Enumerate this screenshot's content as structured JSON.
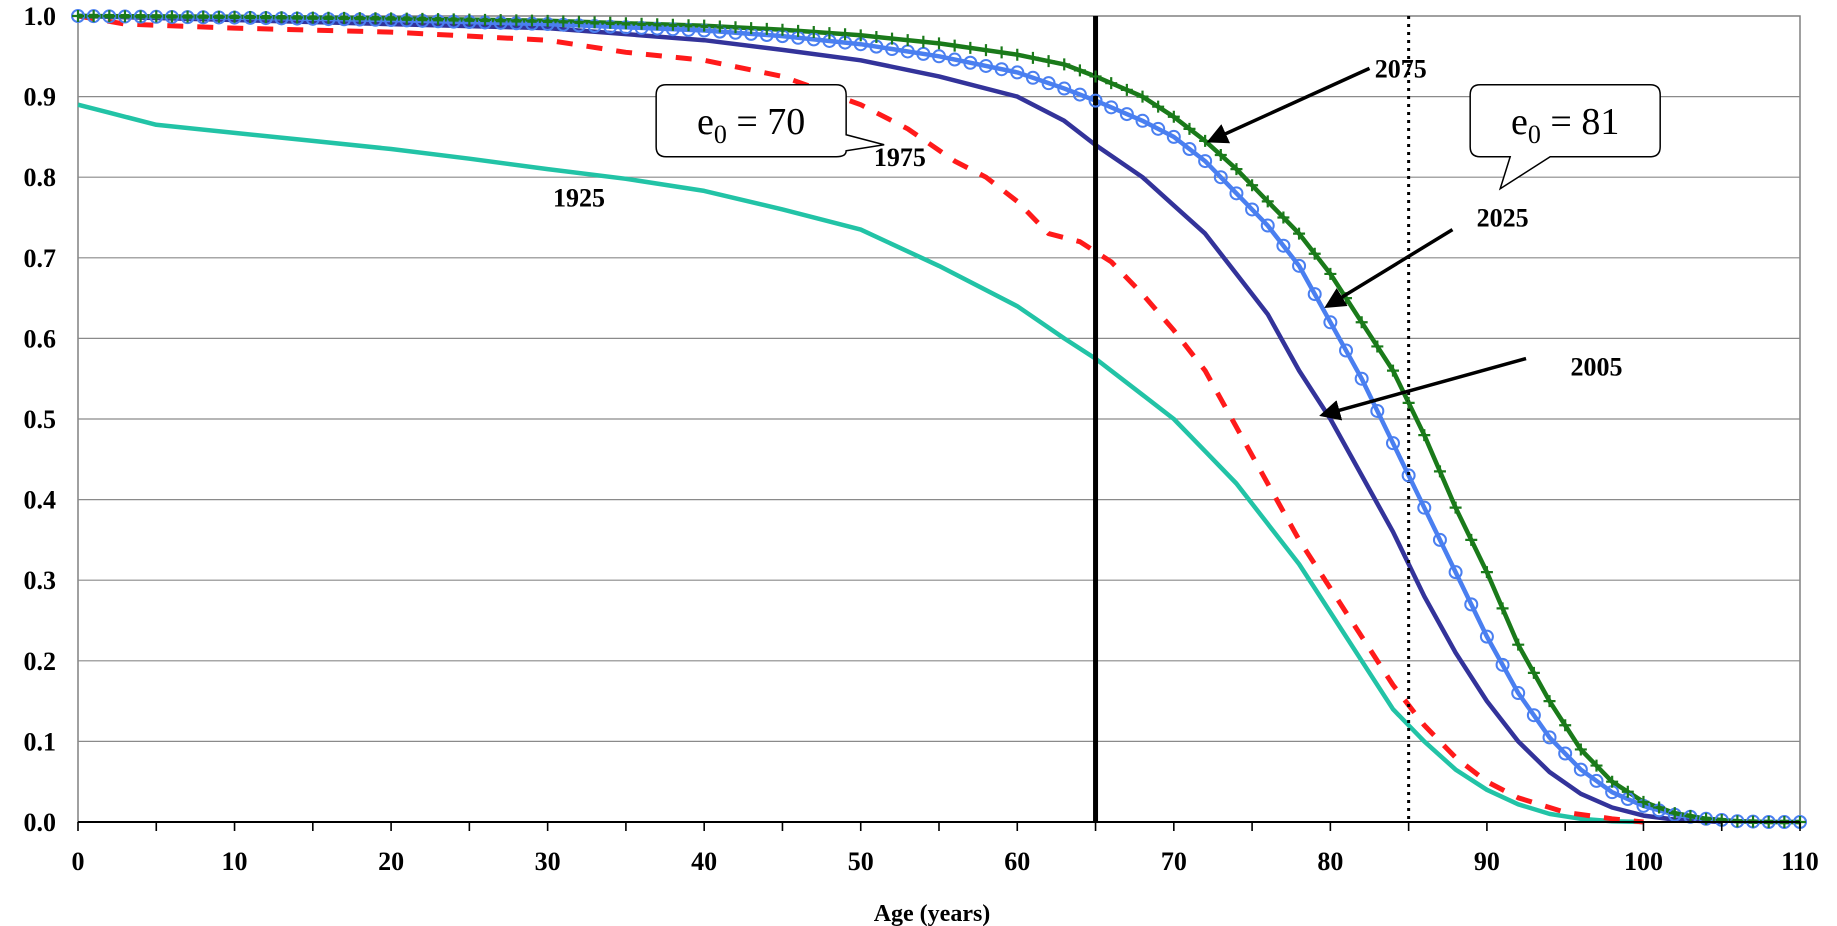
{
  "chart_data": {
    "type": "line",
    "title": "",
    "xlabel": "Age (years)",
    "ylabel": "",
    "xlim": [
      0,
      110
    ],
    "ylim": [
      0,
      1.0
    ],
    "xticks": [
      "0",
      "10",
      "20",
      "30",
      "40",
      "50",
      "60",
      "70",
      "80",
      "90",
      "100",
      "110"
    ],
    "yticks": [
      "0.0",
      "0.1",
      "0.2",
      "0.3",
      "0.4",
      "0.5",
      "0.6",
      "0.7",
      "0.8",
      "0.9",
      "1.0"
    ],
    "grid": "horizontal",
    "legend": "none (direct labels)",
    "series": [
      {
        "name": "1925",
        "color": "#22c3a6",
        "style": "solid",
        "points": [
          [
            0,
            0.89
          ],
          [
            2,
            0.88
          ],
          [
            5,
            0.865
          ],
          [
            10,
            0.855
          ],
          [
            15,
            0.845
          ],
          [
            20,
            0.835
          ],
          [
            25,
            0.823
          ],
          [
            30,
            0.81
          ],
          [
            35,
            0.798
          ],
          [
            40,
            0.783
          ],
          [
            45,
            0.76
          ],
          [
            50,
            0.735
          ],
          [
            55,
            0.69
          ],
          [
            60,
            0.64
          ],
          [
            63,
            0.6
          ],
          [
            65,
            0.575
          ],
          [
            68,
            0.53
          ],
          [
            70,
            0.5
          ],
          [
            72,
            0.46
          ],
          [
            74,
            0.42
          ],
          [
            76,
            0.37
          ],
          [
            78,
            0.32
          ],
          [
            80,
            0.26
          ],
          [
            82,
            0.2
          ],
          [
            84,
            0.14
          ],
          [
            86,
            0.1
          ],
          [
            88,
            0.065
          ],
          [
            90,
            0.04
          ],
          [
            92,
            0.022
          ],
          [
            94,
            0.01
          ],
          [
            96,
            0.004
          ],
          [
            98,
            0.001
          ],
          [
            100,
            0
          ]
        ]
      },
      {
        "name": "1975",
        "color": "#ff1a1a",
        "style": "dashed",
        "points": [
          [
            0,
            1.0
          ],
          [
            3,
            0.99
          ],
          [
            10,
            0.985
          ],
          [
            20,
            0.98
          ],
          [
            30,
            0.97
          ],
          [
            35,
            0.955
          ],
          [
            40,
            0.945
          ],
          [
            45,
            0.925
          ],
          [
            50,
            0.89
          ],
          [
            53,
            0.86
          ],
          [
            56,
            0.82
          ],
          [
            58,
            0.8
          ],
          [
            60,
            0.77
          ],
          [
            62,
            0.73
          ],
          [
            64,
            0.72
          ],
          [
            66,
            0.695
          ],
          [
            68,
            0.655
          ],
          [
            70,
            0.61
          ],
          [
            72,
            0.56
          ],
          [
            74,
            0.49
          ],
          [
            76,
            0.42
          ],
          [
            78,
            0.35
          ],
          [
            80,
            0.29
          ],
          [
            82,
            0.23
          ],
          [
            84,
            0.17
          ],
          [
            86,
            0.12
          ],
          [
            88,
            0.08
          ],
          [
            90,
            0.05
          ],
          [
            92,
            0.03
          ],
          [
            95,
            0.012
          ],
          [
            98,
            0.004
          ],
          [
            100,
            0
          ]
        ]
      },
      {
        "name": "2005",
        "color": "#33339a",
        "style": "solid",
        "points": [
          [
            0,
            1.0
          ],
          [
            10,
            0.995
          ],
          [
            20,
            0.99
          ],
          [
            30,
            0.985
          ],
          [
            40,
            0.97
          ],
          [
            45,
            0.958
          ],
          [
            50,
            0.945
          ],
          [
            55,
            0.925
          ],
          [
            60,
            0.9
          ],
          [
            63,
            0.87
          ],
          [
            65,
            0.84
          ],
          [
            68,
            0.8
          ],
          [
            70,
            0.765
          ],
          [
            72,
            0.73
          ],
          [
            74,
            0.68
          ],
          [
            76,
            0.63
          ],
          [
            78,
            0.56
          ],
          [
            80,
            0.5
          ],
          [
            82,
            0.43
          ],
          [
            84,
            0.36
          ],
          [
            86,
            0.28
          ],
          [
            88,
            0.21
          ],
          [
            90,
            0.15
          ],
          [
            92,
            0.1
          ],
          [
            94,
            0.062
          ],
          [
            96,
            0.035
          ],
          [
            98,
            0.018
          ],
          [
            100,
            0.008
          ],
          [
            102,
            0.003
          ],
          [
            105,
            0
          ]
        ]
      },
      {
        "name": "2025",
        "color": "#4a7ff0",
        "style": "solid-circles",
        "points": [
          [
            0,
            1.0
          ],
          [
            10,
            0.998
          ],
          [
            20,
            0.995
          ],
          [
            30,
            0.99
          ],
          [
            40,
            0.982
          ],
          [
            45,
            0.975
          ],
          [
            50,
            0.965
          ],
          [
            55,
            0.95
          ],
          [
            60,
            0.93
          ],
          [
            63,
            0.91
          ],
          [
            65,
            0.895
          ],
          [
            68,
            0.87
          ],
          [
            70,
            0.85
          ],
          [
            72,
            0.82
          ],
          [
            74,
            0.78
          ],
          [
            76,
            0.74
          ],
          [
            78,
            0.69
          ],
          [
            80,
            0.62
          ],
          [
            82,
            0.55
          ],
          [
            84,
            0.47
          ],
          [
            86,
            0.39
          ],
          [
            88,
            0.31
          ],
          [
            90,
            0.23
          ],
          [
            92,
            0.16
          ],
          [
            94,
            0.105
          ],
          [
            96,
            0.065
          ],
          [
            98,
            0.037
          ],
          [
            100,
            0.02
          ],
          [
            102,
            0.009
          ],
          [
            104,
            0.004
          ],
          [
            106,
            0.001
          ],
          [
            108,
            0
          ],
          [
            110,
            0
          ]
        ]
      },
      {
        "name": "2075",
        "color": "#1a7a1a",
        "style": "solid-plus",
        "points": [
          [
            0,
            1.0
          ],
          [
            10,
            0.999
          ],
          [
            20,
            0.997
          ],
          [
            30,
            0.994
          ],
          [
            40,
            0.988
          ],
          [
            45,
            0.983
          ],
          [
            50,
            0.976
          ],
          [
            55,
            0.966
          ],
          [
            60,
            0.952
          ],
          [
            63,
            0.94
          ],
          [
            65,
            0.925
          ],
          [
            68,
            0.9
          ],
          [
            70,
            0.875
          ],
          [
            72,
            0.845
          ],
          [
            74,
            0.81
          ],
          [
            76,
            0.77
          ],
          [
            78,
            0.73
          ],
          [
            80,
            0.68
          ],
          [
            82,
            0.62
          ],
          [
            84,
            0.56
          ],
          [
            86,
            0.48
          ],
          [
            88,
            0.39
          ],
          [
            90,
            0.31
          ],
          [
            92,
            0.22
          ],
          [
            94,
            0.15
          ],
          [
            96,
            0.09
          ],
          [
            98,
            0.05
          ],
          [
            100,
            0.025
          ],
          [
            102,
            0.011
          ],
          [
            104,
            0.004
          ],
          [
            106,
            0.001
          ],
          [
            108,
            0
          ],
          [
            110,
            0
          ]
        ]
      }
    ],
    "reference_lines": [
      {
        "x": 65,
        "style": "solid",
        "color": "#000000"
      },
      {
        "x": 85,
        "style": "dotted",
        "color": "#000000"
      }
    ],
    "annotations": {
      "series_labels": [
        {
          "text": "1925",
          "x": 32,
          "y": 0.775
        },
        {
          "text": "1975",
          "x": 52.5,
          "y": 0.825
        },
        {
          "text": "2075",
          "x": 84.5,
          "y": 0.935
        },
        {
          "text": "2025",
          "x": 91,
          "y": 0.75
        },
        {
          "text": "2005",
          "x": 97,
          "y": 0.565
        }
      ],
      "arrows": [
        {
          "label": "2075",
          "from": [
            82.5,
            0.935
          ],
          "to": [
            72.3,
            0.845
          ]
        },
        {
          "label": "2025",
          "from": [
            87.8,
            0.735
          ],
          "to": [
            79.8,
            0.64
          ]
        },
        {
          "label": "2005",
          "from": [
            92.5,
            0.575
          ],
          "to": [
            79.5,
            0.505
          ]
        }
      ],
      "callouts": [
        {
          "base": "e",
          "sub": "0",
          "text": " = 70",
          "x": 43,
          "y": 0.87
        },
        {
          "base": "e",
          "sub": "0",
          "text": " = 81",
          "x": 95,
          "y": 0.87
        }
      ]
    }
  }
}
